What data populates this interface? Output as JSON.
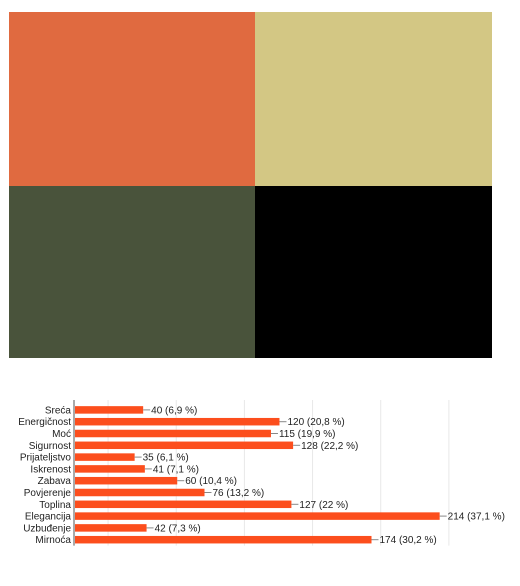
{
  "palette": {
    "colors": [
      "#e06a40",
      "#d3c784",
      "#49533b",
      "#000000"
    ]
  },
  "chart_data": {
    "type": "bar",
    "orientation": "horizontal",
    "bar_color": "#fc4e1d",
    "grid": true,
    "xlim": [
      0,
      240
    ],
    "categories": [
      "Sreća",
      "Energičnost",
      "Moć",
      "Sigurnost",
      "Prijateljstvo",
      "Iskrenost",
      "Zabava",
      "Povjerenje",
      "Toplina",
      "Elegancija",
      "Uzbuđenje",
      "Mirnoća"
    ],
    "values": [
      40,
      120,
      115,
      128,
      35,
      41,
      60,
      76,
      127,
      214,
      42,
      174
    ],
    "data_labels": [
      "40 (6,9 %)",
      "120 (20,8 %)",
      "115 (19,9 %)",
      "128 (22,2 %)",
      "35 (6,1 %)",
      "41 (7,1 %)",
      "60 (10,4 %)",
      "76 (13,2 %)",
      "127 (22 %)",
      "214 (37,1 %)",
      "42 (7,3 %)",
      "174 (30,2 %)"
    ]
  }
}
